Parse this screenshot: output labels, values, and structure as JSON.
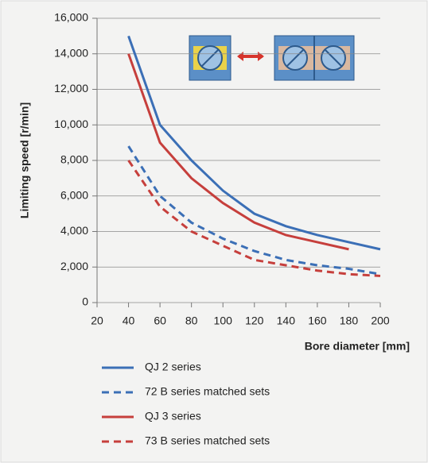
{
  "chart_data": {
    "type": "line",
    "y_label": "Limiting speed  [r/min]",
    "x_label": "Bore diameter [mm]",
    "xlim": [
      20,
      200
    ],
    "xticks": [
      20,
      40,
      60,
      80,
      100,
      120,
      140,
      160,
      180,
      200
    ],
    "ylim": [
      0,
      16000
    ],
    "yticks": [
      0,
      {
        "value": 2000,
        "label": "2,000"
      },
      {
        "value": 4000,
        "label": "4,000"
      },
      {
        "value": 6000,
        "label": "6,000"
      },
      {
        "value": 8000,
        "label": "8,000"
      },
      {
        "value": 10000,
        "label": "10,000"
      },
      {
        "value": 12000,
        "label": "12,000"
      },
      {
        "value": 14000,
        "label": "14,000"
      },
      {
        "value": 16000,
        "label": "16,000"
      }
    ],
    "grid": true,
    "series": [
      {
        "name": "QJ 2 series",
        "color": "#3b6fb6",
        "line_style": "solid",
        "x": [
          40,
          60,
          80,
          100,
          120,
          140,
          160,
          180,
          200
        ],
        "values": [
          15000,
          10000,
          8000,
          6300,
          5000,
          4300,
          3800,
          3400,
          3000
        ]
      },
      {
        "name": "72 B series matched sets",
        "color": "#3b6fb6",
        "line_style": "dashed",
        "x": [
          40,
          60,
          80,
          100,
          120,
          140,
          160,
          180,
          200
        ],
        "values": [
          8800,
          6000,
          4500,
          3600,
          2900,
          2400,
          2100,
          1900,
          1600
        ]
      },
      {
        "name": "QJ 3 series",
        "color": "#c63f3c",
        "line_style": "solid",
        "x": [
          40,
          60,
          80,
          100,
          120,
          140,
          160,
          180
        ],
        "values": [
          14000,
          9000,
          7000,
          5600,
          4500,
          3800,
          3400,
          3000
        ]
      },
      {
        "name": "73 B series matched sets",
        "color": "#c63f3c",
        "line_style": "dashed",
        "x": [
          40,
          60,
          80,
          100,
          120,
          140,
          160,
          180,
          200
        ],
        "values": [
          8000,
          5400,
          4000,
          3200,
          2400,
          2100,
          1800,
          1600,
          1500
        ]
      }
    ]
  }
}
